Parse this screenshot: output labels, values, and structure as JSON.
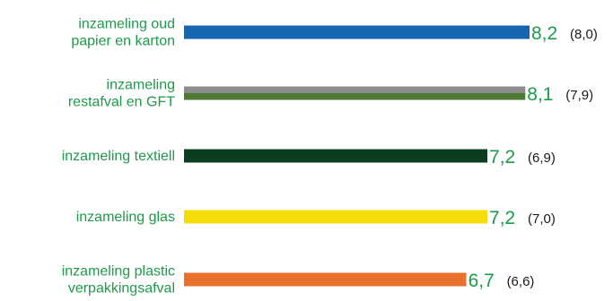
{
  "chart_data": {
    "type": "bar",
    "orientation": "horizontal",
    "title": "",
    "xlabel": "",
    "ylabel": "",
    "grid": false,
    "legend": "none",
    "xlim": [
      0,
      8.2
    ],
    "bars": [
      {
        "label_lines": [
          "inzameling oud",
          "papier en karton"
        ],
        "value": 8.2,
        "value_label": "8,2",
        "previous": 8.0,
        "previous_label": "(8,0)",
        "colors": [
          "#1565b0"
        ]
      },
      {
        "label_lines": [
          "inzameling",
          "restafval en GFT"
        ],
        "value": 8.1,
        "value_label": "8,1",
        "previous": 7.9,
        "previous_label": "(7,9)",
        "colors": [
          "#8c8c8c",
          "#4d7a32"
        ]
      },
      {
        "label_lines": [
          "inzameling textiell"
        ],
        "value": 7.2,
        "value_label": "7,2",
        "previous": 6.9,
        "previous_label": "(6,9)",
        "colors": [
          "#0b3d20"
        ]
      },
      {
        "label_lines": [
          "inzameling glas"
        ],
        "value": 7.2,
        "value_label": "7,2",
        "previous": 7.0,
        "previous_label": "(7,0)",
        "colors": [
          "#f5dd0a"
        ]
      },
      {
        "label_lines": [
          "inzameling plastic",
          "verpakkingsafval"
        ],
        "value": 6.7,
        "value_label": "6,7",
        "previous": 6.6,
        "previous_label": "(6,6)",
        "colors": [
          "#e8722c"
        ]
      }
    ]
  },
  "colors": {
    "label_text": "#1e9a4a",
    "previous_text": "#1a1a1a"
  }
}
